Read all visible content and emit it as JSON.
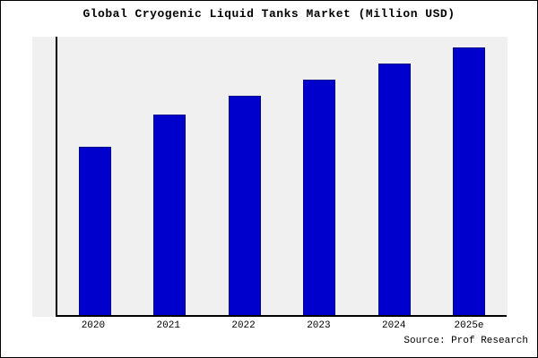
{
  "title": "Global Cryogenic Liquid Tanks Market (Million USD)",
  "source": "Source: Prof Research",
  "colors": {
    "bar_fill": "#0000cd",
    "bar_border": "#00008b",
    "plot_bg": "#f0f0f0",
    "axis": "#000000",
    "background": "#ffffff",
    "frame_border": "#000000"
  },
  "chart_data": {
    "type": "bar",
    "categories": [
      "2020",
      "2021",
      "2022",
      "2023",
      "2024",
      "2025e"
    ],
    "values": [
      63,
      75,
      82,
      88,
      94,
      100
    ],
    "title": "Global Cryogenic Liquid Tanks Market (Million USD)",
    "xlabel": "",
    "ylabel": "",
    "ylim": [
      0,
      104
    ],
    "grid": false,
    "legend": false,
    "y_tick_labels_visible": false,
    "annotation": "Source: Prof Research"
  }
}
